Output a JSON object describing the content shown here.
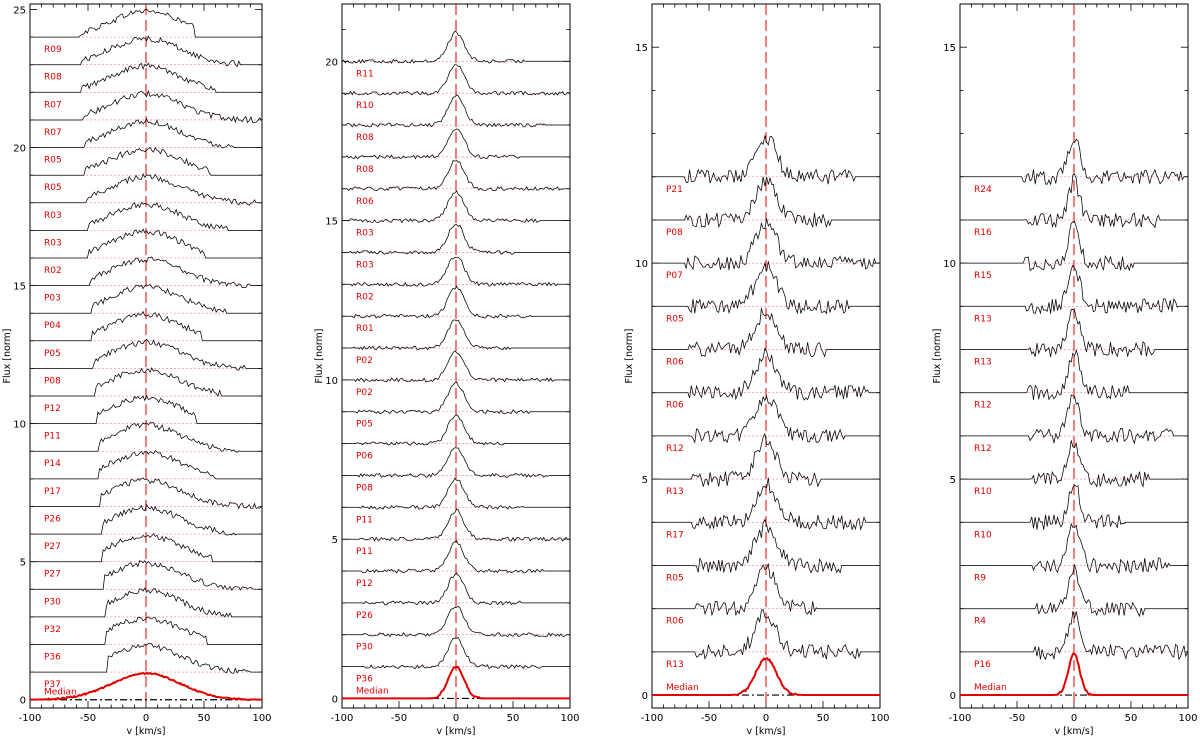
{
  "colors": {
    "spectrum": "#000000",
    "median": "#e00000",
    "label": "#e00000",
    "zero_line": "#e00000",
    "baseline": "#f08080"
  },
  "chart_data": [
    {
      "type": "line",
      "xlabel": "v [km/s]",
      "ylabel": "Flux [norm]",
      "xlim": [
        -100,
        100
      ],
      "ylim": [
        -0.3,
        25.2
      ],
      "xticks": [
        -100,
        -50,
        0,
        50,
        100
      ],
      "yticks": [
        0,
        5,
        10,
        15,
        20,
        25
      ],
      "profile_width_kms": 30,
      "series": [
        {
          "name": "R09",
          "offset": 24.0
        },
        {
          "name": "R08",
          "offset": 23.0
        },
        {
          "name": "R07",
          "offset": 22.0
        },
        {
          "name": "R07",
          "offset": 21.0
        },
        {
          "name": "R05",
          "offset": 20.0
        },
        {
          "name": "R05",
          "offset": 19.0
        },
        {
          "name": "R03",
          "offset": 18.0
        },
        {
          "name": "R03",
          "offset": 17.0
        },
        {
          "name": "R02",
          "offset": 16.0
        },
        {
          "name": "P03",
          "offset": 15.0
        },
        {
          "name": "P04",
          "offset": 14.0
        },
        {
          "name": "P05",
          "offset": 13.0
        },
        {
          "name": "P08",
          "offset": 12.0
        },
        {
          "name": "P12",
          "offset": 11.0
        },
        {
          "name": "P11",
          "offset": 10.0
        },
        {
          "name": "P14",
          "offset": 9.0
        },
        {
          "name": "P17",
          "offset": 8.0
        },
        {
          "name": "P26",
          "offset": 7.0
        },
        {
          "name": "P27",
          "offset": 6.0
        },
        {
          "name": "P27",
          "offset": 5.0
        },
        {
          "name": "P30",
          "offset": 4.0
        },
        {
          "name": "P32",
          "offset": 3.0
        },
        {
          "name": "P36",
          "offset": 2.0
        },
        {
          "name": "P37",
          "offset": 1.0
        }
      ],
      "median": {
        "name": "Median",
        "offset": 0.0,
        "peak": 0.95
      }
    },
    {
      "type": "line",
      "xlabel": "v [km/s]",
      "ylabel": "Flux [norm]",
      "xlim": [
        -100,
        100
      ],
      "ylim": [
        -0.3,
        21.8
      ],
      "xticks": [
        -100,
        -50,
        0,
        50,
        100
      ],
      "yticks": [
        0,
        5,
        10,
        15,
        20
      ],
      "profile_width_kms": 7,
      "series": [
        {
          "name": "R11",
          "offset": 20.0
        },
        {
          "name": "R10",
          "offset": 19.0
        },
        {
          "name": "R08",
          "offset": 18.0
        },
        {
          "name": "R08",
          "offset": 17.0
        },
        {
          "name": "R06",
          "offset": 16.0
        },
        {
          "name": "R03",
          "offset": 15.0
        },
        {
          "name": "R03",
          "offset": 14.0
        },
        {
          "name": "R02",
          "offset": 13.0
        },
        {
          "name": "R01",
          "offset": 12.0
        },
        {
          "name": "P02",
          "offset": 11.0
        },
        {
          "name": "P02",
          "offset": 10.0
        },
        {
          "name": "P05",
          "offset": 9.0
        },
        {
          "name": "P06",
          "offset": 8.0
        },
        {
          "name": "P08",
          "offset": 7.0
        },
        {
          "name": "P11",
          "offset": 6.0
        },
        {
          "name": "P11",
          "offset": 5.0
        },
        {
          "name": "P12",
          "offset": 4.0
        },
        {
          "name": "P26",
          "offset": 3.0
        },
        {
          "name": "P30",
          "offset": 2.0
        },
        {
          "name": "P36",
          "offset": 1.0
        }
      ],
      "median": {
        "name": "Median",
        "offset": 0.0,
        "peak": 1.0
      }
    },
    {
      "type": "line",
      "xlabel": "v [km/s]",
      "ylabel": "Flux [norm]",
      "xlim": [
        -100,
        100
      ],
      "ylim": [
        -0.3,
        16.0
      ],
      "xticks": [
        -100,
        -50,
        0,
        50,
        100
      ],
      "yticks": [
        0,
        5,
        10,
        15
      ],
      "profile_width_kms": 9,
      "series": [
        {
          "name": "P21",
          "offset": 12.0
        },
        {
          "name": "P08",
          "offset": 11.0
        },
        {
          "name": "P07",
          "offset": 10.0
        },
        {
          "name": "R05",
          "offset": 9.0
        },
        {
          "name": "R06",
          "offset": 8.0
        },
        {
          "name": "R06",
          "offset": 7.0
        },
        {
          "name": "R12",
          "offset": 6.0
        },
        {
          "name": "R13",
          "offset": 5.0
        },
        {
          "name": "R17",
          "offset": 4.0
        },
        {
          "name": "R05",
          "offset": 3.0
        },
        {
          "name": "R06",
          "offset": 2.0
        },
        {
          "name": "R13",
          "offset": 1.0
        }
      ],
      "median": {
        "name": "Median",
        "offset": 0.0,
        "peak": 0.85
      }
    },
    {
      "type": "line",
      "xlabel": "v [km/s]",
      "ylabel": "Flux [norm]",
      "xlim": [
        -100,
        100
      ],
      "ylim": [
        -0.3,
        16.0
      ],
      "xticks": [
        -100,
        -50,
        0,
        50,
        100
      ],
      "yticks": [
        0,
        5,
        10,
        15
      ],
      "profile_width_kms": 5,
      "series": [
        {
          "name": "R24",
          "offset": 12.0
        },
        {
          "name": "R16",
          "offset": 11.0
        },
        {
          "name": "R15",
          "offset": 10.0
        },
        {
          "name": "R13",
          "offset": 9.0
        },
        {
          "name": "R13",
          "offset": 8.0
        },
        {
          "name": "R12",
          "offset": 7.0
        },
        {
          "name": "R12",
          "offset": 6.0
        },
        {
          "name": "R10",
          "offset": 5.0
        },
        {
          "name": "R10",
          "offset": 4.0
        },
        {
          "name": "R9",
          "offset": 3.0
        },
        {
          "name": "R4",
          "offset": 2.0
        },
        {
          "name": "P16",
          "offset": 1.0
        }
      ],
      "median": {
        "name": "Median",
        "offset": 0.0,
        "peak": 0.95
      }
    }
  ]
}
